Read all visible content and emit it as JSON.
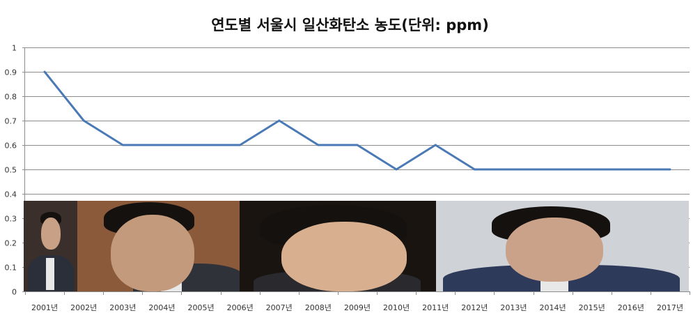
{
  "chart_data": {
    "type": "line",
    "title": "연도별 서울시 일산화탄소 농도(단위: ppm)",
    "xlabel": "",
    "ylabel": "",
    "categories": [
      "2001년",
      "2002년",
      "2003년",
      "2004년",
      "2005년",
      "2006년",
      "2007년",
      "2008년",
      "2009년",
      "2010년",
      "2011년",
      "2012년",
      "2013년",
      "2014년",
      "2015년",
      "2016년",
      "2017년"
    ],
    "series": [
      {
        "values": [
          0.9,
          0.7,
          0.6,
          0.6,
          0.6,
          0.6,
          0.7,
          0.6,
          0.6,
          0.5,
          0.6,
          0.5,
          0.5,
          0.5,
          0.5,
          0.5,
          0.5
        ]
      }
    ],
    "ylim": [
      0,
      1
    ],
    "yticks": [
      0,
      0.1,
      0.2,
      0.3,
      0.4,
      0.5,
      0.6,
      0.7,
      0.8,
      0.9,
      1
    ],
    "ytick_labels": [
      "0",
      "0.1",
      "0.2",
      "0.3",
      "0.4",
      "0.5",
      "0.6",
      "0.7",
      "0.8",
      "0.9",
      "1"
    ],
    "grid": true,
    "line_color": "#4a7ab5",
    "grid_color": "#8c8c8c"
  },
  "photos": [
    {
      "name": "portrait-1",
      "bg": "#3a2f2a",
      "skin": "#c8a086",
      "suit": "#2b2f3a"
    },
    {
      "name": "portrait-2",
      "bg": "#8a5a3a",
      "skin": "#c49a7c",
      "suit": "#30323a"
    },
    {
      "name": "portrait-3",
      "bg": "#1a1410",
      "skin": "#d9b08f",
      "suit": "#2a2a2e"
    },
    {
      "name": "portrait-4",
      "bg": "#cfd3d8",
      "skin": "#caa28a",
      "suit": "#2e3a5a"
    }
  ]
}
